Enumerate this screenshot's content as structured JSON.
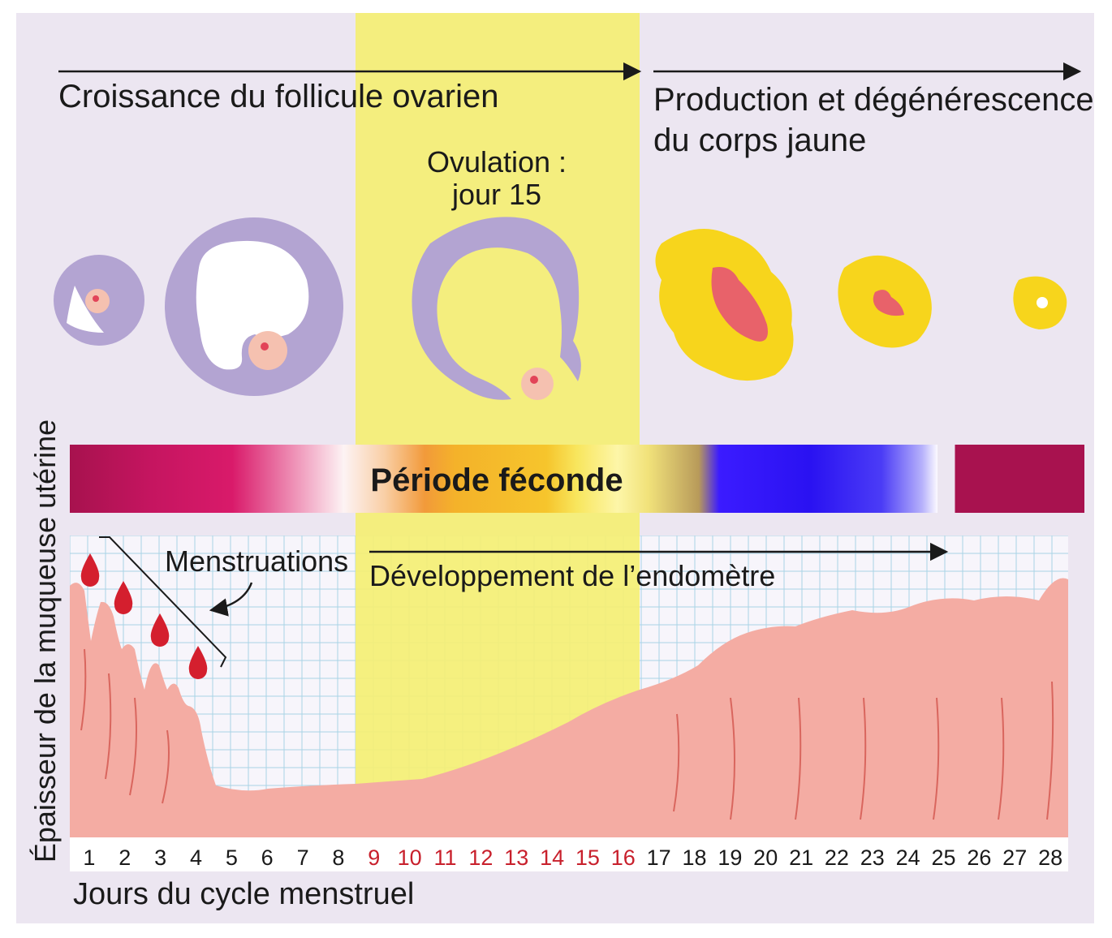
{
  "labels": {
    "follicle_growth": "Croissance du follicule ovarien",
    "corpus_line1": "Production et dégénérescence",
    "corpus_line2": "du corps jaune",
    "ovulation_line1": "Ovulation :",
    "ovulation_line2": "jour 15",
    "fertile_period": "Période féconde",
    "menstruation": "Menstruations",
    "endometrium_dev": "Développement de l’endomètre",
    "y_axis": "Épaisseur de la muqueuse utérine",
    "x_axis": "Jours du cycle menstruel"
  },
  "days": [
    "1",
    "2",
    "3",
    "4",
    "5",
    "6",
    "7",
    "8",
    "9",
    "10",
    "11",
    "12",
    "13",
    "14",
    "15",
    "16",
    "17",
    "18",
    "19",
    "20",
    "21",
    "22",
    "23",
    "24",
    "25",
    "26",
    "27",
    "28"
  ],
  "fertile_days": [
    "9",
    "10",
    "11",
    "12",
    "13",
    "14",
    "15",
    "16"
  ],
  "colors": {
    "background": "#ece6f1",
    "fertile_highlight": "#f4ef74",
    "follicle": "#b3a4d2",
    "corpus_luteum": "#f7d51c",
    "endometrium": "#f4aca3",
    "blood": "#d41f2e",
    "day_normal": "#1a1a1a",
    "day_fertile": "#c8202c"
  }
}
